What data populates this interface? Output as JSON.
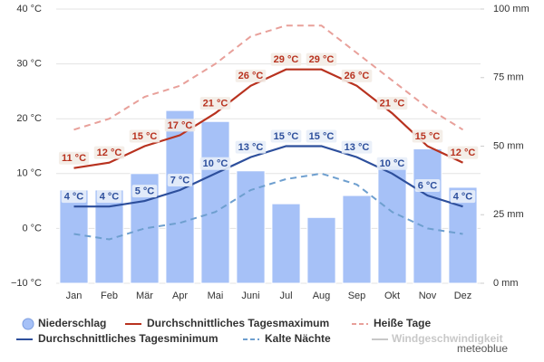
{
  "chart_data": {
    "type": "combo",
    "categories": [
      "Jan",
      "Feb",
      "Mär",
      "Apr",
      "Mai",
      "Juni",
      "Jul",
      "Aug",
      "Sep",
      "Okt",
      "Nov",
      "Dez"
    ],
    "ylim": [
      -10,
      40
    ],
    "yticks": [
      {
        "value": -10,
        "label": "−10 °C"
      },
      {
        "value": 0,
        "label": "0 °C"
      },
      {
        "value": 10,
        "label": "10 °C"
      },
      {
        "value": 20,
        "label": "20 °C"
      },
      {
        "value": 30,
        "label": "30 °C"
      },
      {
        "value": 40,
        "label": "40 °C"
      }
    ],
    "y2lim": [
      0,
      100
    ],
    "y2ticks": [
      {
        "value": 0,
        "label": "0 mm"
      },
      {
        "value": 25,
        "label": "25 mm"
      },
      {
        "value": 50,
        "label": "50 mm"
      },
      {
        "value": 75,
        "label": "75 mm"
      },
      {
        "value": 100,
        "label": "100 mm"
      }
    ],
    "grid": true,
    "series": [
      {
        "name": "Niederschlag",
        "type": "bar",
        "axis": "y2",
        "color": "#a6c1f7",
        "values": [
          34,
          34,
          40,
          63,
          59,
          41,
          29,
          24,
          32,
          43,
          49,
          35
        ]
      },
      {
        "name": "Durchschnittliches Tagesmaximum",
        "type": "line",
        "color": "#b8321f",
        "label_bg": "#f3ece6",
        "values": [
          11,
          12,
          15,
          17,
          21,
          26,
          29,
          29,
          26,
          21,
          15,
          12
        ],
        "value_labels": [
          "11 °C",
          "12 °C",
          "15 °C",
          "17 °C",
          "21 °C",
          "26 °C",
          "29 °C",
          "29 °C",
          "26 °C",
          "21 °C",
          "15 °C",
          "12 °C"
        ]
      },
      {
        "name": "Heiße Tage",
        "type": "line",
        "dash": true,
        "color": "#e8a09a",
        "values": [
          18,
          20,
          24,
          26,
          30,
          35,
          37,
          37,
          32,
          27,
          22,
          18
        ]
      },
      {
        "name": "Durchschnittliches Tagesminimum",
        "type": "line",
        "color": "#2d4f9c",
        "label_bg": "#e8eef8",
        "values": [
          4,
          4,
          5,
          7,
          10,
          13,
          15,
          15,
          13,
          10,
          6,
          4
        ],
        "value_labels": [
          "4 °C",
          "4 °C",
          "5 °C",
          "7 °C",
          "10 °C",
          "13 °C",
          "15 °C",
          "15 °C",
          "13 °C",
          "10 °C",
          "6 °C",
          "4 °C"
        ]
      },
      {
        "name": "Kalte Nächte",
        "type": "line",
        "dash": true,
        "color": "#6e9fcf",
        "values": [
          -1,
          -2,
          0,
          1,
          3,
          7,
          9,
          10,
          8,
          3,
          0,
          -1
        ]
      }
    ],
    "legend_extra": [
      {
        "name": "Windgeschwindigkeit",
        "color": "#c8c8c8"
      }
    ],
    "credit": "meteoblue"
  }
}
